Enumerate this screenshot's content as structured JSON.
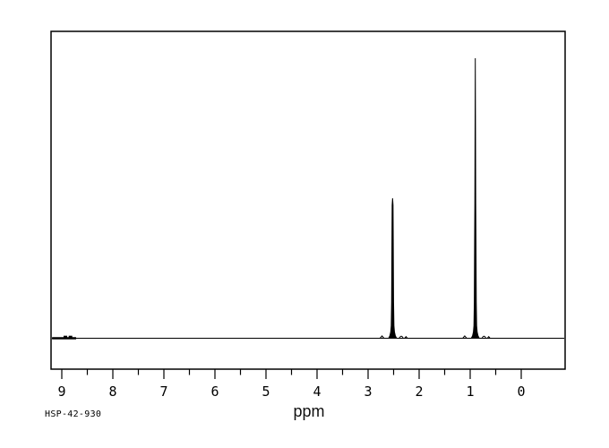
{
  "colors": {
    "ink": "#000000",
    "background": "#ffffff"
  },
  "footer": {
    "sample_id": "HSP-42-930"
  },
  "chart_data": {
    "type": "line",
    "subtype": "1H-NMR spectrum",
    "title": "",
    "xlabel": "ppm",
    "ylabel": "",
    "annotation": "HSP-42-930",
    "grid": false,
    "legend": "none",
    "x_axis": {
      "direction": "reversed",
      "xlim": [
        9.2,
        -0.86
      ],
      "major_ticks": [
        9,
        8,
        7,
        6,
        5,
        4,
        3,
        2,
        1,
        0
      ],
      "minor_ticks": [
        8.5,
        7.5,
        6.5,
        5.5,
        4.5,
        3.5,
        2.5,
        1.5,
        0.5
      ]
    },
    "peaks": [
      {
        "ppm": 2.52,
        "relative_height": 0.5,
        "column_height": 0.475,
        "description": "sharp singlet, half height"
      },
      {
        "ppm": 0.9,
        "relative_height": 1.0,
        "column_height": 0.48,
        "description": "tall sharp peak, thin spike over thicker doublet column"
      }
    ],
    "baseline_noise": {
      "ppm_range": [
        8.72,
        9.19
      ],
      "speck_ppm": [
        8.93,
        8.83
      ]
    }
  }
}
